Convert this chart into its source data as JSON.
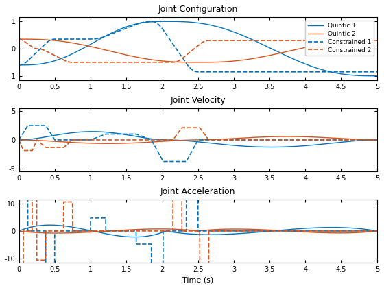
{
  "title1": "Joint Configuration",
  "title2": "Joint Velocity",
  "title3": "Joint Acceleration",
  "xlabel": "Time (s)",
  "xlim": [
    0,
    5
  ],
  "ylim1": [
    -1.15,
    1.15
  ],
  "ylim2": [
    -5.5,
    5.5
  ],
  "ylim3": [
    -11.5,
    11.5
  ],
  "yticks1": [
    -1,
    0,
    1
  ],
  "yticks2": [
    -5,
    0,
    5
  ],
  "yticks3": [
    -10,
    0,
    10
  ],
  "color_blue": "#0072BD",
  "color_orange": "#D95319",
  "legend_labels": [
    "Quintic 1",
    "Quintic 2",
    "Constrained 1",
    "Constrained 2"
  ],
  "t_end": 5.0,
  "n_points": 2000,
  "background": "#ffffff"
}
